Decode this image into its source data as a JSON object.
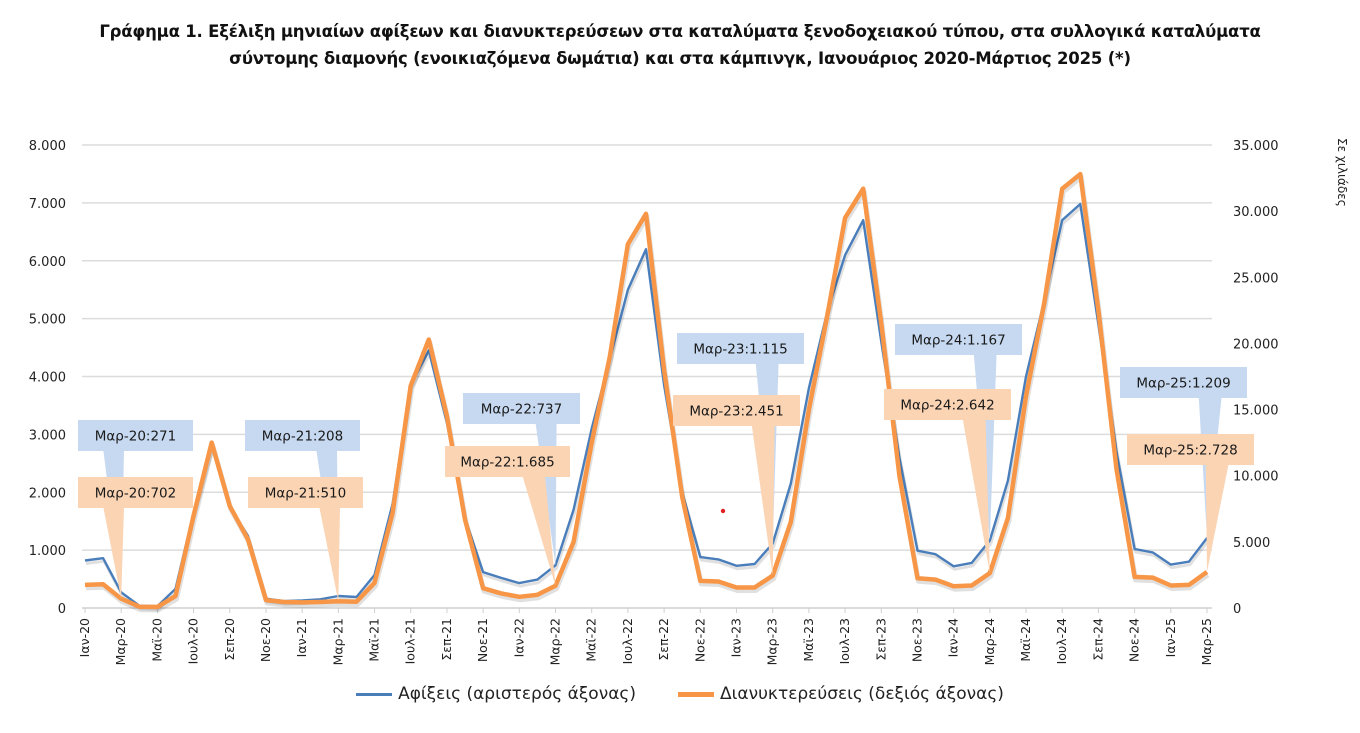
{
  "title_line1": "Γράφημα 1. Εξέλιξη μηνιαίων αφίξεων και διανυκτερεύσεων στα καταλύματα ξενοδοχειακού τύπου, στα συλλογικά καταλύματα",
  "title_line2": "σύντομης διαμονής (ενοικιαζόμενα δωμάτια) και στα κάμπινγκ, Ιανουάριος 2020-Μάρτιος 2025 (*)",
  "right_axis_unit": "Σε χιλιάδες",
  "legend": {
    "arrivals": "Αφίξεις (αριστερός άξονας)",
    "nights": "Διανυκτερεύσεις (δεξιός άξονας)"
  },
  "chart_data": {
    "type": "line",
    "title": "Γράφημα 1. Εξέλιξη μηνιαίων αφίξεων και διανυκτερεύσεων στα καταλύματα ξενοδοχειακού τύπου, στα συλλογικά καταλύματα σύντομης διαμονής (ενοικιαζόμενα δωμάτια) και στα κάμπινγκ, Ιανουάριος 2020-Μάρτιος 2025 (*)",
    "xlabel": "",
    "ylabel_left": "",
    "ylabel_right": "Σε χιλιάδες",
    "ylim_left": [
      0,
      8000
    ],
    "ylim_right": [
      0,
      35000
    ],
    "yticks_left": [
      "0",
      "1.000",
      "2.000",
      "3.000",
      "4.000",
      "5.000",
      "6.000",
      "7.000",
      "8.000"
    ],
    "yticks_right": [
      "0",
      "5.000",
      "10.000",
      "15.000",
      "20.000",
      "25.000",
      "30.000",
      "35.000"
    ],
    "grid": true,
    "legend_position": "bottom",
    "x": [
      "Ιαν-20",
      "Φεβ-20",
      "Μαρ-20",
      "Απρ-20",
      "Μαϊ-20",
      "Ιουν-20",
      "Ιουλ-20",
      "Αυγ-20",
      "Σεπ-20",
      "Οκτ-20",
      "Νοε-20",
      "Δεκ-20",
      "Ιαν-21",
      "Φεβ-21",
      "Μαρ-21",
      "Απρ-21",
      "Μαϊ-21",
      "Ιουν-21",
      "Ιουλ-21",
      "Αυγ-21",
      "Σεπ-21",
      "Οκτ-21",
      "Νοε-21",
      "Δεκ-21",
      "Ιαν-22",
      "Φεβ-22",
      "Μαρ-22",
      "Απρ-22",
      "Μαϊ-22",
      "Ιουν-22",
      "Ιουλ-22",
      "Αυγ-22",
      "Σεπ-22",
      "Οκτ-22",
      "Νοε-22",
      "Δεκ-22",
      "Ιαν-23",
      "Φεβ-23",
      "Μαρ-23",
      "Απρ-23",
      "Μαϊ-23",
      "Ιουν-23",
      "Ιουλ-23",
      "Αυγ-23",
      "Σεπ-23",
      "Οκτ-23",
      "Νοε-23",
      "Δεκ-23",
      "Ιαν-24",
      "Φεβ-24",
      "Μαρ-24",
      "Απρ-24",
      "Μαϊ-24",
      "Ιουν-24",
      "Ιουλ-24",
      "Αυγ-24",
      "Σεπ-24",
      "Οκτ-24",
      "Νοε-24",
      "Δεκ-24",
      "Ιαν-25",
      "Φεβ-25",
      "Μαρ-25"
    ],
    "xtick_labels": [
      "Ιαν-20",
      "Μαρ-20",
      "Μαϊ-20",
      "Ιουλ-20",
      "Σεπ-20",
      "Νοε-20",
      "Ιαν-21",
      "Μαρ-21",
      "Μαϊ-21",
      "Ιουλ-21",
      "Σεπ-21",
      "Νοε-21",
      "Ιαν-22",
      "Μαρ-22",
      "Μαϊ-22",
      "Ιουλ-22",
      "Σεπ-22",
      "Νοε-22",
      "Ιαν-23",
      "Μαρ-23",
      "Μαϊ-23",
      "Ιουλ-23",
      "Σεπ-23",
      "Νοε-23",
      "Ιαν-24",
      "Μαρ-24",
      "Μαϊ-24",
      "Ιουλ-24",
      "Σεπ-24",
      "Νοε-24",
      "Ιαν-25",
      "Μαρ-25"
    ],
    "series": [
      {
        "name": "Αφίξεις (αριστερός άξονας)",
        "axis": "left",
        "color": "#4a7ebb",
        "values": [
          820,
          860,
          271,
          40,
          30,
          330,
          1650,
          2800,
          1750,
          1250,
          160,
          120,
          130,
          150,
          208,
          190,
          570,
          1800,
          3850,
          4450,
          3200,
          1550,
          620,
          520,
          430,
          490,
          737,
          1700,
          3100,
          4300,
          5500,
          6200,
          3850,
          2000,
          880,
          840,
          730,
          760,
          1115,
          2150,
          3800,
          5100,
          6100,
          6700,
          4600,
          2600,
          990,
          930,
          720,
          780,
          1167,
          2200,
          4000,
          5300,
          6700,
          6980,
          4900,
          2700,
          1020,
          960,
          750,
          800,
          1209
        ]
      },
      {
        "name": "Διανυκτερεύσεις (δεξιός άξονας)",
        "axis": "right",
        "color": "#f79646",
        "values": [
          1750,
          1800,
          702,
          100,
          80,
          900,
          7000,
          12500,
          7700,
          5200,
          600,
          450,
          420,
          450,
          510,
          480,
          1900,
          7200,
          16800,
          20300,
          14500,
          6700,
          1500,
          1100,
          850,
          1000,
          1685,
          5000,
          12500,
          19000,
          27500,
          29800,
          18000,
          8400,
          2050,
          2000,
          1550,
          1550,
          2451,
          6500,
          15000,
          22000,
          29500,
          31700,
          21500,
          10000,
          2250,
          2150,
          1650,
          1700,
          2642,
          6800,
          16000,
          23000,
          31700,
          32800,
          22500,
          10500,
          2350,
          2300,
          1700,
          1750,
          2728
        ]
      }
    ],
    "annotations": [
      {
        "series": "Αφίξεις",
        "label": "Μαρ-20:271",
        "x": "Μαρ-20"
      },
      {
        "series": "Διανυκτερεύσεις",
        "label": "Μαρ-20:702",
        "x": "Μαρ-20"
      },
      {
        "series": "Αφίξεις",
        "label": "Μαρ-21:208",
        "x": "Μαρ-21"
      },
      {
        "series": "Διανυκτερεύσεις",
        "label": "Μαρ-21:510",
        "x": "Μαρ-21"
      },
      {
        "series": "Αφίξεις",
        "label": "Μαρ-22:737",
        "x": "Μαρ-22"
      },
      {
        "series": "Διανυκτερεύσεις",
        "label": "Μαρ-22:1.685",
        "x": "Μαρ-22"
      },
      {
        "series": "Αφίξεις",
        "label": "Μαρ-23:1.115",
        "x": "Μαρ-23"
      },
      {
        "series": "Διανυκτερεύσεις",
        "label": "Μαρ-23:2.451",
        "x": "Μαρ-23"
      },
      {
        "series": "Αφίξεις",
        "label": "Μαρ-24:1.167",
        "x": "Μαρ-24"
      },
      {
        "series": "Διανυκτερεύσεις",
        "label": "Μαρ-24:2.642",
        "x": "Μαρ-24"
      },
      {
        "series": "Αφίξεις",
        "label": "Μαρ-25:1.209",
        "x": "Μαρ-25"
      },
      {
        "series": "Διανυκτερεύσεις",
        "label": "Μαρ-25:2.728",
        "x": "Μαρ-25"
      }
    ]
  }
}
